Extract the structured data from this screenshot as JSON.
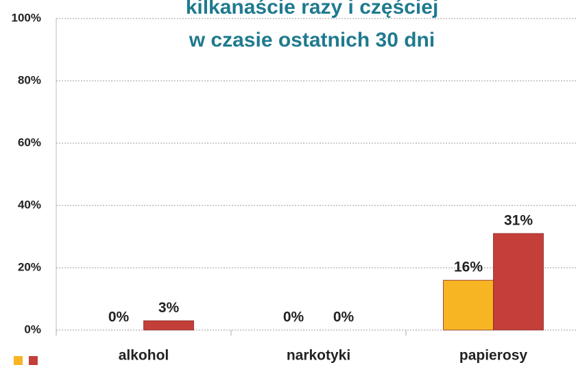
{
  "chart_data": {
    "type": "bar",
    "title": [
      "kilkanaście razy i częściej",
      "w czasie ostatnich 30 dni"
    ],
    "categories": [
      "alkohol",
      "narkotyki",
      "papierosy"
    ],
    "series": [
      {
        "color": "#f7b524",
        "values": [
          0,
          0,
          16
        ],
        "value_labels": [
          "0%",
          "0%",
          "16%"
        ]
      },
      {
        "color": "#c43f3a",
        "values": [
          3,
          0,
          31
        ],
        "value_labels": [
          "3%",
          "0%",
          "31%"
        ]
      }
    ],
    "ylim": [
      0,
      100
    ],
    "yticks": [
      {
        "value": 0,
        "label": "0%"
      },
      {
        "value": 20,
        "label": "20%"
      },
      {
        "value": 40,
        "label": "40%"
      },
      {
        "value": 60,
        "label": "60%"
      },
      {
        "value": 80,
        "label": "80%"
      },
      {
        "value": 100,
        "label": "100%"
      }
    ],
    "grid": true
  }
}
